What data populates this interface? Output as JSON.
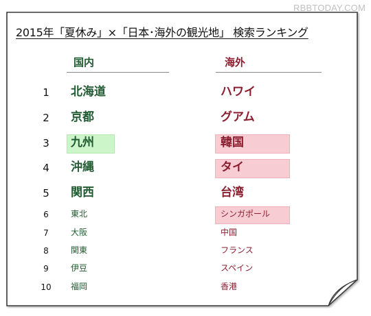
{
  "watermark": "RBBTODAY.COM",
  "title": "2015年「夏休み」×「日本･海外の観光地」 検索ランキング",
  "columns": {
    "domestic": "国内",
    "overseas": "海外"
  },
  "ranking": [
    {
      "rank": "1",
      "domestic": "北海道",
      "overseas": "ハワイ",
      "domestic_highlight": false,
      "overseas_highlight": false
    },
    {
      "rank": "2",
      "domestic": "京都",
      "overseas": "グアム",
      "domestic_highlight": false,
      "overseas_highlight": false
    },
    {
      "rank": "3",
      "domestic": "九州",
      "overseas": "韓国",
      "domestic_highlight": true,
      "overseas_highlight": true
    },
    {
      "rank": "4",
      "domestic": "沖縄",
      "overseas": "タイ",
      "domestic_highlight": false,
      "overseas_highlight": true
    },
    {
      "rank": "5",
      "domestic": "関西",
      "overseas": "台湾",
      "domestic_highlight": false,
      "overseas_highlight": false
    },
    {
      "rank": "6",
      "domestic": "東北",
      "overseas": "シンガポール",
      "domestic_highlight": false,
      "overseas_highlight": true
    },
    {
      "rank": "7",
      "domestic": "大阪",
      "overseas": "中国",
      "domestic_highlight": false,
      "overseas_highlight": false
    },
    {
      "rank": "8",
      "domestic": "関東",
      "overseas": "フランス",
      "domestic_highlight": false,
      "overseas_highlight": false
    },
    {
      "rank": "9",
      "domestic": "伊豆",
      "overseas": "スペイン",
      "domestic_highlight": false,
      "overseas_highlight": false
    },
    {
      "rank": "10",
      "domestic": "福岡",
      "overseas": "香港",
      "domestic_highlight": false,
      "overseas_highlight": false
    }
  ],
  "colors": {
    "domestic_text": "#215b32",
    "overseas_text": "#8b1e2e",
    "domestic_highlight": "#ccf5c9",
    "overseas_highlight": "#f8ccd3"
  }
}
